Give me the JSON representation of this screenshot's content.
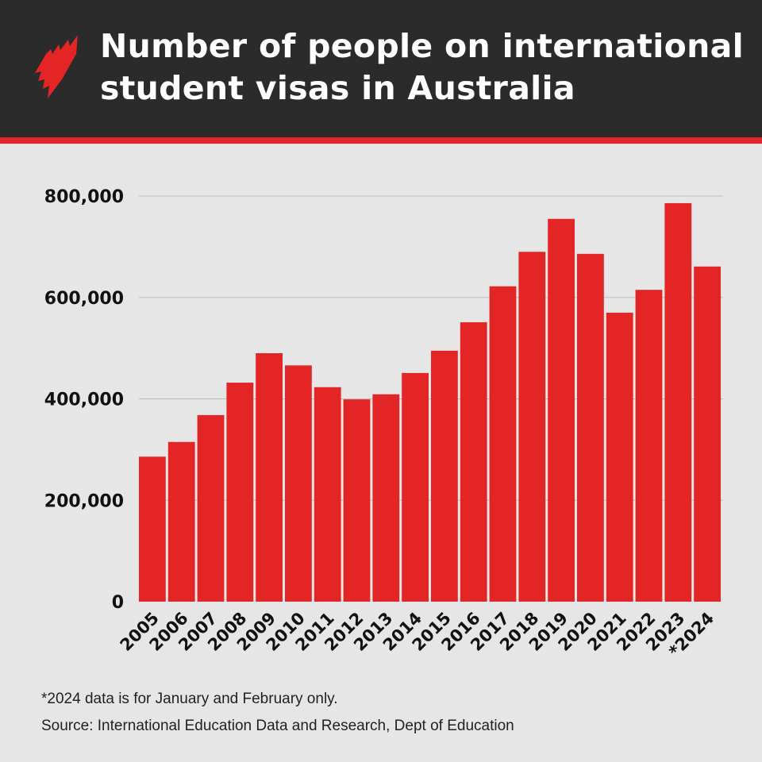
{
  "header": {
    "title": "Number of people on international student visas in Australia",
    "logo": "SBS"
  },
  "colors": {
    "bar": "#e32526",
    "header_bg": "#2b2b2b",
    "background": "#e6e6e6",
    "grid": "#bdbdbd"
  },
  "chart_data": {
    "type": "bar",
    "title": "Number of people on international student visas in Australia",
    "xlabel": "",
    "ylabel": "",
    "categories": [
      "2005",
      "2006",
      "2007",
      "2008",
      "2009",
      "2010",
      "2011",
      "2012",
      "2013",
      "2014",
      "2015",
      "2016",
      "2017",
      "2018",
      "2019",
      "2020",
      "2021",
      "2022",
      "2023",
      "*2024"
    ],
    "values": [
      286000,
      315000,
      368000,
      432000,
      490000,
      466000,
      423000,
      399000,
      409000,
      451000,
      495000,
      551000,
      622000,
      690000,
      755000,
      686000,
      570000,
      615000,
      786000,
      661000
    ],
    "ylim": [
      0,
      800000
    ],
    "yticks": [
      0,
      200000,
      400000,
      600000,
      800000
    ],
    "ytick_labels": [
      "0",
      "200,000",
      "400,000",
      "600,000",
      "800,000"
    ],
    "grid": true,
    "legend": "none"
  },
  "footnotes": {
    "note": "*2024 data is for January and February only.",
    "source": "Source: International Education Data and Research, Dept of Education"
  }
}
